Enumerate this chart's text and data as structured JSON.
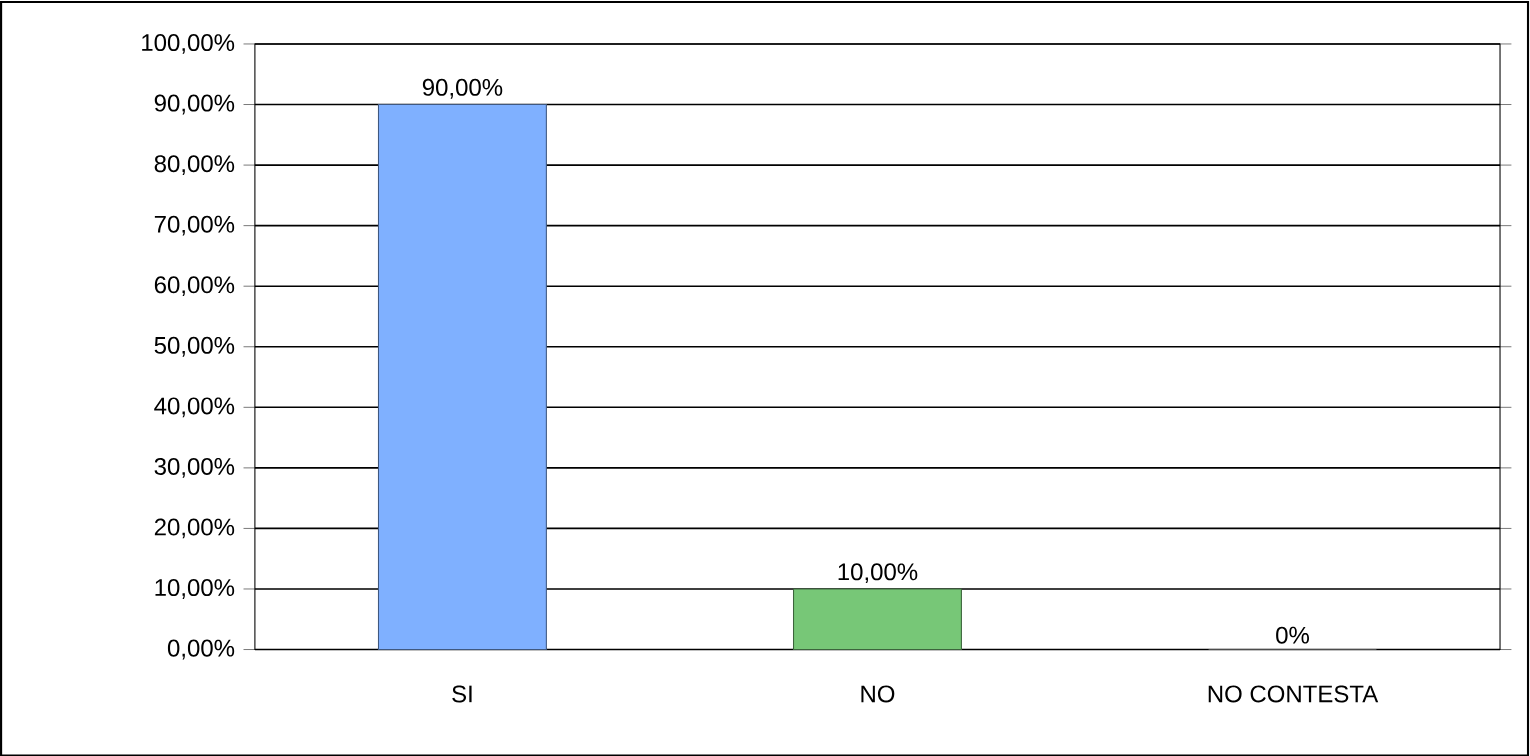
{
  "chart_data": {
    "type": "bar",
    "categories": [
      "SI",
      "NO",
      "NO CONTESTA"
    ],
    "values": [
      90,
      10,
      0
    ],
    "colors": [
      "#7fb0ff",
      "#77c777",
      "#999999"
    ],
    "value_labels": [
      "90,00%",
      "10,00%",
      "0%"
    ],
    "ylim": [
      0,
      100
    ],
    "yticks": [
      {
        "value": 0,
        "label": "0,00%"
      },
      {
        "value": 10,
        "label": "10,00%"
      },
      {
        "value": 20,
        "label": "20,00%"
      },
      {
        "value": 30,
        "label": "30,00%"
      },
      {
        "value": 40,
        "label": "40,00%"
      },
      {
        "value": 50,
        "label": "50,00%"
      },
      {
        "value": 60,
        "label": "60,00%"
      },
      {
        "value": 70,
        "label": "70,00%"
      },
      {
        "value": 80,
        "label": "80,00%"
      },
      {
        "value": 90,
        "label": "90,00%"
      },
      {
        "value": 100,
        "label": "100,00%"
      }
    ],
    "grid": "y"
  }
}
